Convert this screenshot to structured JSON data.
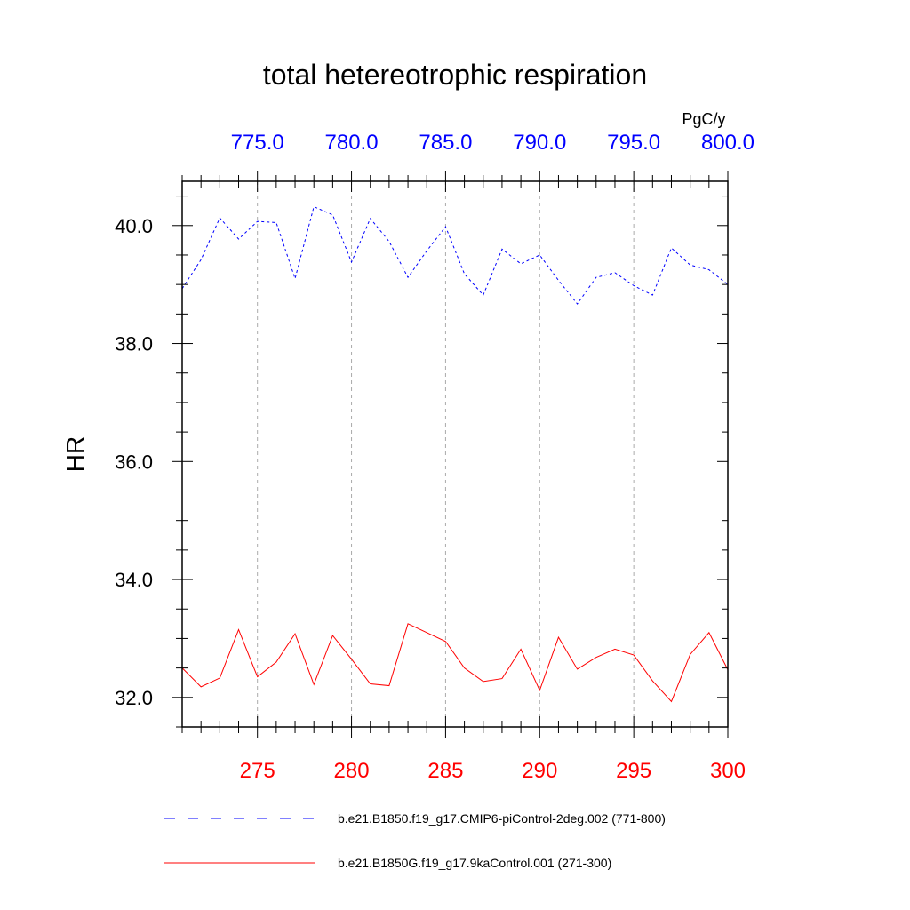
{
  "chart_data": {
    "type": "line",
    "title": "total hetereotrophic respiration",
    "ylabel": "HR",
    "units": "PgC/y",
    "ylim": [
      31.5,
      40.75
    ],
    "yticks": [
      32.0,
      34.0,
      36.0,
      38.0,
      40.0
    ],
    "ytick_labels": [
      "32.0",
      "34.0",
      "36.0",
      "38.0",
      "40.0"
    ],
    "x_bottom": {
      "range": [
        271,
        300
      ],
      "ticks": [
        275,
        280,
        285,
        290,
        295,
        300
      ],
      "tick_labels": [
        "275",
        "280",
        "285",
        "290",
        "295",
        "300"
      ],
      "color": "#ff0000"
    },
    "x_top": {
      "range": [
        771,
        800
      ],
      "ticks": [
        775,
        780,
        785,
        790,
        795,
        800
      ],
      "tick_labels": [
        "775.0",
        "780.0",
        "785.0",
        "790.0",
        "795.0",
        "800.0"
      ],
      "color": "#0000ff"
    },
    "grid": "vertical-dashed",
    "series": [
      {
        "name": "b.e21.B1850.f19_g17.CMIP6-piControl-2deg.002 (771-800)",
        "axis": "top",
        "color": "#0000ff",
        "style": "dashed",
        "x": [
          771,
          772,
          773,
          774,
          775,
          776,
          777,
          778,
          779,
          780,
          781,
          782,
          783,
          784,
          785,
          786,
          787,
          788,
          789,
          790,
          791,
          792,
          793,
          794,
          795,
          796,
          797,
          798,
          799,
          800
        ],
        "values": [
          38.93,
          39.42,
          40.13,
          39.77,
          40.07,
          40.05,
          39.1,
          40.32,
          40.18,
          39.38,
          40.12,
          39.73,
          39.12,
          39.57,
          39.98,
          39.18,
          38.82,
          39.6,
          39.35,
          39.5,
          39.07,
          38.67,
          39.12,
          39.2,
          38.98,
          38.82,
          39.62,
          39.33,
          39.25,
          39.0
        ]
      },
      {
        "name": "b.e21.B1850G.f19_g17.9kaControl.001 (271-300)",
        "axis": "bottom",
        "color": "#ff0000",
        "style": "solid",
        "x": [
          271,
          272,
          273,
          274,
          275,
          276,
          277,
          278,
          279,
          280,
          281,
          282,
          283,
          284,
          285,
          286,
          287,
          288,
          289,
          290,
          291,
          292,
          293,
          294,
          295,
          296,
          297,
          298,
          299,
          300
        ],
        "values": [
          32.5,
          32.18,
          32.33,
          33.15,
          32.35,
          32.6,
          33.08,
          32.22,
          33.05,
          32.65,
          32.23,
          32.2,
          33.25,
          33.1,
          32.95,
          32.5,
          32.27,
          32.32,
          32.82,
          32.12,
          33.02,
          32.48,
          32.68,
          32.82,
          32.72,
          32.28,
          31.93,
          32.73,
          33.1,
          32.47
        ]
      }
    ]
  }
}
